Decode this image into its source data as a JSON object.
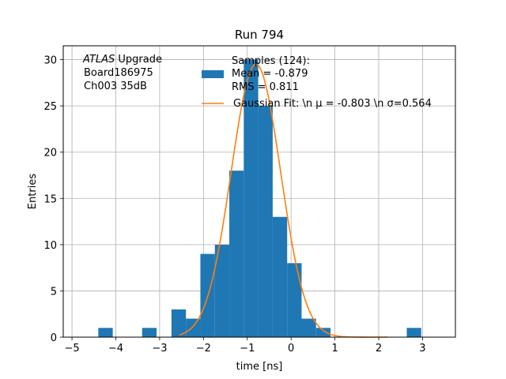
{
  "chart_data": {
    "type": "bar",
    "title": "Run 794",
    "xlabel": "time [ns]",
    "ylabel": "Entries",
    "xlim": [
      -5.2,
      3.75
    ],
    "ylim": [
      0,
      31.5
    ],
    "xticks": [
      -5,
      -4,
      -3,
      -2,
      -1,
      0,
      1,
      2,
      3
    ],
    "yticks": [
      0,
      5,
      10,
      15,
      20,
      25,
      30
    ],
    "grid": true,
    "bin_width": 0.33,
    "bins": [
      {
        "x0": -4.4,
        "value": 1
      },
      {
        "x0": -3.4,
        "value": 1
      },
      {
        "x0": -2.73,
        "value": 3
      },
      {
        "x0": -2.4,
        "value": 2
      },
      {
        "x0": -2.07,
        "value": 9
      },
      {
        "x0": -1.74,
        "value": 10
      },
      {
        "x0": -1.41,
        "value": 18
      },
      {
        "x0": -1.08,
        "value": 30
      },
      {
        "x0": -0.75,
        "value": 25
      },
      {
        "x0": -0.42,
        "value": 13
      },
      {
        "x0": -0.09,
        "value": 8
      },
      {
        "x0": 0.24,
        "value": 2
      },
      {
        "x0": 0.57,
        "value": 1
      },
      {
        "x0": 2.64,
        "value": 1
      }
    ],
    "bar_color": "#1f77b4",
    "fit": {
      "mu": -0.803,
      "sigma": 0.564,
      "amplitude": 29.5,
      "color": "#ff7f0e"
    },
    "legend": {
      "placement": "upper right",
      "samples_lines": [
        "Samples (124):",
        " Mean = -0.879",
        " RMS = 0.811"
      ],
      "fit_label": "Gaussian Fit: \\n μ = -0.803 \\n σ=0.564"
    },
    "annotation": {
      "lines": [
        " Upgrade",
        " Board186975",
        " Ch003 35dB"
      ],
      "italic_word": "ATLAS"
    }
  }
}
